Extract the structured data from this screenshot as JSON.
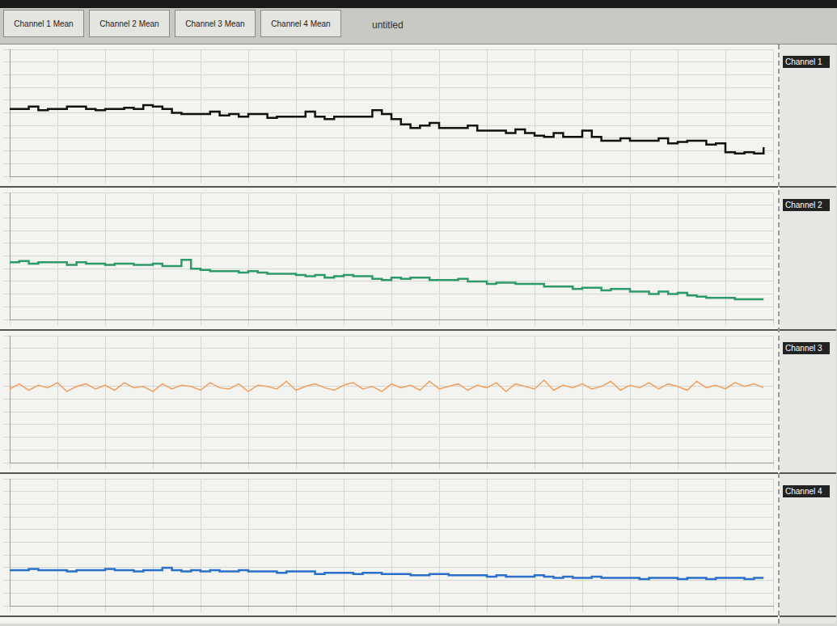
{
  "header": {
    "title": "untitled",
    "tabs": [
      "Channel 1 Mean",
      "Channel 2 Mean",
      "Channel 3 Mean",
      "Channel 4 Mean"
    ]
  },
  "chart_data": [
    {
      "type": "line",
      "grid": true,
      "tick_labels": false,
      "xlim": [
        0,
        80
      ],
      "xticks": [
        0,
        5,
        10,
        15,
        20,
        25,
        30,
        35,
        40,
        45,
        50,
        55,
        60,
        65,
        70,
        75,
        80
      ],
      "ylim": [
        0,
        100
      ],
      "yticks": [
        0,
        10,
        20,
        30,
        40,
        50,
        60,
        70,
        80,
        90,
        100
      ],
      "series": [
        {
          "name": "Channel 1",
          "color": "#111111",
          "line_style": "stepped",
          "values": [
            53,
            53,
            55,
            52,
            53,
            53,
            55,
            55,
            53,
            52,
            53,
            53,
            54,
            53,
            56,
            55,
            53,
            50,
            49,
            49,
            49,
            51,
            48,
            49,
            47,
            49,
            49,
            46,
            47,
            47,
            47,
            51,
            47,
            45,
            47,
            47,
            47,
            47,
            52,
            49,
            45,
            41,
            38,
            40,
            42,
            38,
            38,
            38,
            40,
            36,
            36,
            36,
            34,
            37,
            34,
            32,
            31,
            34,
            31,
            31,
            36,
            31,
            28,
            28,
            30,
            28,
            28,
            28,
            30,
            26,
            27,
            28,
            28,
            25,
            26,
            19,
            18,
            19,
            18,
            23
          ]
        }
      ]
    },
    {
      "type": "line",
      "grid": true,
      "tick_labels": false,
      "xlim": [
        0,
        80
      ],
      "xticks": [
        0,
        5,
        10,
        15,
        20,
        25,
        30,
        35,
        40,
        45,
        50,
        55,
        60,
        65,
        70,
        75,
        80
      ],
      "ylim": [
        0,
        100
      ],
      "yticks": [
        0,
        10,
        20,
        30,
        40,
        50,
        60,
        70,
        80,
        90,
        100
      ],
      "series": [
        {
          "name": "Channel 2",
          "color": "#2e9a6a",
          "line_style": "stepped",
          "values": [
            45,
            46,
            44,
            45,
            45,
            45,
            43,
            45,
            44,
            44,
            43,
            44,
            44,
            43,
            43,
            44,
            42,
            42,
            47,
            40,
            39,
            38,
            38,
            38,
            37,
            38,
            37,
            36,
            36,
            36,
            35,
            34,
            35,
            33,
            34,
            35,
            34,
            34,
            32,
            31,
            33,
            32,
            33,
            33,
            31,
            31,
            31,
            32,
            30,
            30,
            28,
            29,
            29,
            28,
            28,
            28,
            26,
            26,
            26,
            24,
            25,
            25,
            23,
            24,
            24,
            22,
            22,
            20,
            22,
            20,
            21,
            19,
            18,
            17,
            17,
            17,
            16,
            16,
            16,
            16
          ]
        }
      ]
    },
    {
      "type": "line",
      "grid": true,
      "tick_labels": false,
      "xlim": [
        0,
        80
      ],
      "xticks": [
        0,
        5,
        10,
        15,
        20,
        25,
        30,
        35,
        40,
        45,
        50,
        55,
        60,
        65,
        70,
        75,
        80
      ],
      "ylim": [
        0,
        100
      ],
      "yticks": [
        0,
        10,
        20,
        30,
        40,
        50,
        60,
        70,
        80,
        90,
        100
      ],
      "series": [
        {
          "name": "Channel 3",
          "color": "#f0a060",
          "line_style": "solid",
          "values": [
            58,
            62,
            57,
            61,
            59,
            63,
            56,
            60,
            62,
            58,
            61,
            57,
            63,
            59,
            60,
            56,
            62,
            58,
            61,
            60,
            57,
            63,
            59,
            58,
            62,
            56,
            61,
            60,
            58,
            64,
            57,
            60,
            62,
            59,
            57,
            61,
            63,
            58,
            60,
            56,
            62,
            59,
            61,
            57,
            64,
            58,
            60,
            62,
            57,
            61,
            59,
            63,
            56,
            62,
            60,
            58,
            65,
            57,
            61,
            59,
            62,
            58,
            60,
            64,
            57,
            61,
            59,
            63,
            58,
            62,
            60,
            57,
            64,
            59,
            61,
            58,
            63,
            60,
            62,
            59
          ]
        }
      ]
    },
    {
      "type": "line",
      "grid": true,
      "tick_labels": false,
      "xlim": [
        0,
        80
      ],
      "xticks": [
        0,
        5,
        10,
        15,
        20,
        25,
        30,
        35,
        40,
        45,
        50,
        55,
        60,
        65,
        70,
        75,
        80
      ],
      "ylim": [
        0,
        100
      ],
      "yticks": [
        0,
        10,
        20,
        30,
        40,
        50,
        60,
        70,
        80,
        90,
        100
      ],
      "series": [
        {
          "name": "Channel 4",
          "color": "#2a6fc9",
          "line_style": "stepped",
          "values": [
            28,
            28,
            29,
            28,
            28,
            28,
            27,
            28,
            28,
            28,
            29,
            28,
            28,
            27,
            28,
            28,
            30,
            28,
            27,
            28,
            27,
            28,
            27,
            27,
            28,
            27,
            27,
            27,
            26,
            27,
            27,
            27,
            25,
            26,
            26,
            26,
            25,
            26,
            26,
            25,
            25,
            25,
            24,
            24,
            25,
            25,
            24,
            24,
            24,
            24,
            23,
            24,
            23,
            23,
            23,
            24,
            23,
            22,
            23,
            22,
            22,
            23,
            22,
            22,
            22,
            22,
            21,
            22,
            22,
            22,
            21,
            22,
            22,
            21,
            22,
            22,
            22,
            21,
            22,
            22
          ]
        }
      ]
    }
  ]
}
